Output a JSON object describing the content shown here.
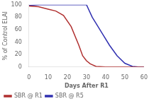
{
  "chart_data": {
    "type": "line",
    "xlabel": "Days After R1",
    "ylabel": "% of Control ELAI",
    "series": [
      {
        "name": "SBR @ R1",
        "color": "#b03030",
        "x": [
          0,
          5,
          10,
          14,
          18,
          22,
          26,
          28,
          30,
          32,
          35,
          40,
          45,
          50,
          55,
          60
        ],
        "values": [
          98,
          97,
          93,
          90,
          83,
          65,
          35,
          18,
          10,
          5,
          1,
          0,
          0,
          0,
          0,
          0
        ]
      },
      {
        "name": "SBR @ R5",
        "color": "#3030b0",
        "x": [
          0,
          5,
          10,
          15,
          20,
          25,
          28,
          30,
          33,
          35,
          38,
          42,
          46,
          50,
          54,
          57,
          60
        ],
        "values": [
          99,
          100,
          100,
          100,
          100,
          100,
          100,
          100,
          80,
          70,
          55,
          35,
          18,
          6,
          1,
          0,
          0
        ]
      }
    ],
    "xlim": [
      0,
      60
    ],
    "ylim": [
      0,
      100
    ],
    "xticks": [
      0,
      10,
      20,
      30,
      40,
      50,
      60
    ],
    "yticks": [
      0,
      20,
      40,
      60,
      80,
      100
    ],
    "grid": false,
    "legend": "lower left"
  }
}
